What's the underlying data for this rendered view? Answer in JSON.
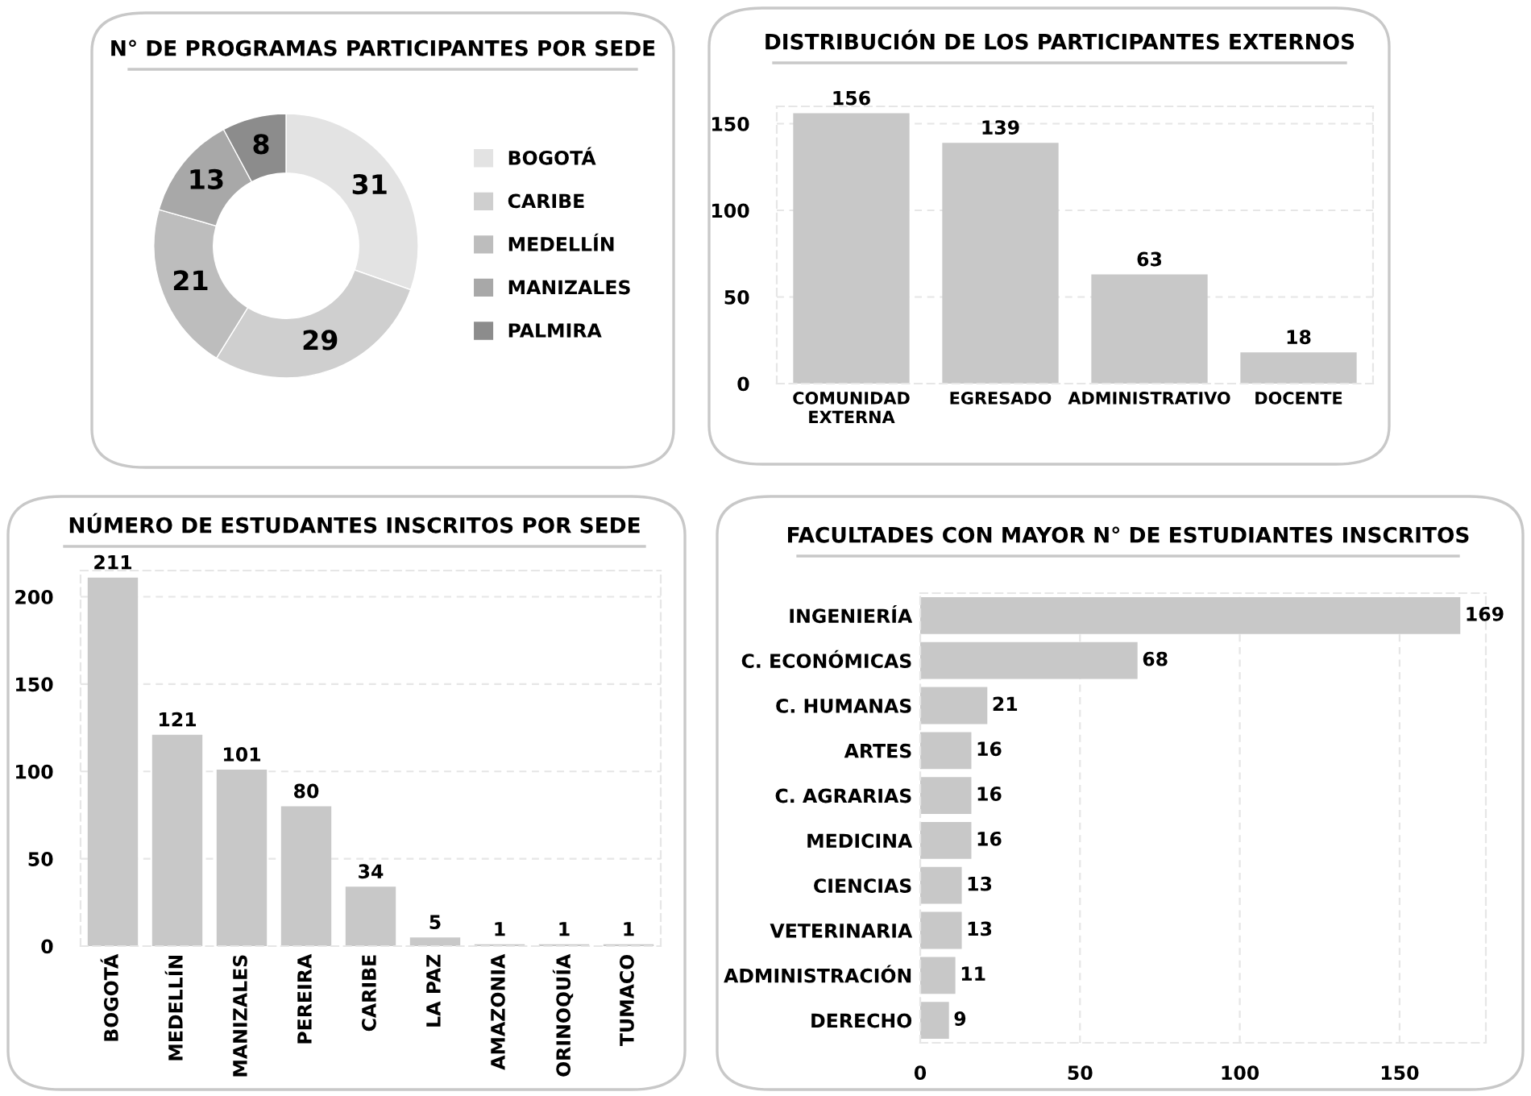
{
  "chart_data": [
    {
      "type": "donut",
      "title": "N° DE PROGRAMAS PARTICIPANTES POR SEDE",
      "categories": [
        "BOGOTÁ",
        "CARIBE",
        "MEDELLÍN",
        "MANIZALES",
        "PALMIRA"
      ],
      "values": [
        31,
        29,
        21,
        13,
        8
      ],
      "colors": [
        "#e3e3e3",
        "#cfcfcf",
        "#bdbdbd",
        "#a8a8a8",
        "#8c8c8c"
      ],
      "data_labels": true,
      "legend": "right"
    },
    {
      "type": "bar",
      "title": "DISTRIBUCIÓN DE LOS PARTICIPANTES EXTERNOS",
      "categories": [
        "COMUNIDAD\nEXTERNA",
        "EGRESADO",
        "ADMINISTRATIVO",
        "DOCENTE"
      ],
      "values": [
        156,
        139,
        63,
        18
      ],
      "color": "#c8c8c8",
      "ylim": [
        0,
        160
      ],
      "yticks": [
        0,
        50,
        100,
        150
      ],
      "grid": true,
      "data_labels": true
    },
    {
      "type": "bar",
      "title": "NÚMERO DE ESTUDANTES INSCRITOS POR SEDE",
      "categories": [
        "BOGOTÁ",
        "MEDELLÍN",
        "MANIZALES",
        "PEREIRA",
        "CARIBE",
        "LA PAZ",
        "AMAZONIA",
        "ORINOQUÍA",
        "TUMACO"
      ],
      "values": [
        211,
        121,
        101,
        80,
        34,
        5,
        1,
        1,
        1
      ],
      "color": "#c8c8c8",
      "ylim": [
        0,
        215
      ],
      "yticks": [
        0,
        50,
        100,
        150,
        200
      ],
      "grid": true,
      "data_labels": true
    },
    {
      "type": "bar",
      "orientation": "horizontal",
      "title": "FACULTADES CON MAYOR N° DE ESTUDIANTES INSCRITOS",
      "categories": [
        "INGENIERÍA",
        "C. ECONÓMICAS",
        "C. HUMANAS",
        "ARTES",
        "C. AGRARIAS",
        "MEDICINA",
        "CIENCIAS",
        "VETERINARIA",
        "ADMINISTRACIÓN",
        "DERECHO"
      ],
      "values": [
        169,
        68,
        21,
        16,
        16,
        16,
        13,
        13,
        11,
        9
      ],
      "color": "#c8c8c8",
      "xlim": [
        0,
        177
      ],
      "xticks": [
        0,
        50,
        100,
        150
      ],
      "grid": true,
      "data_labels": true
    }
  ]
}
